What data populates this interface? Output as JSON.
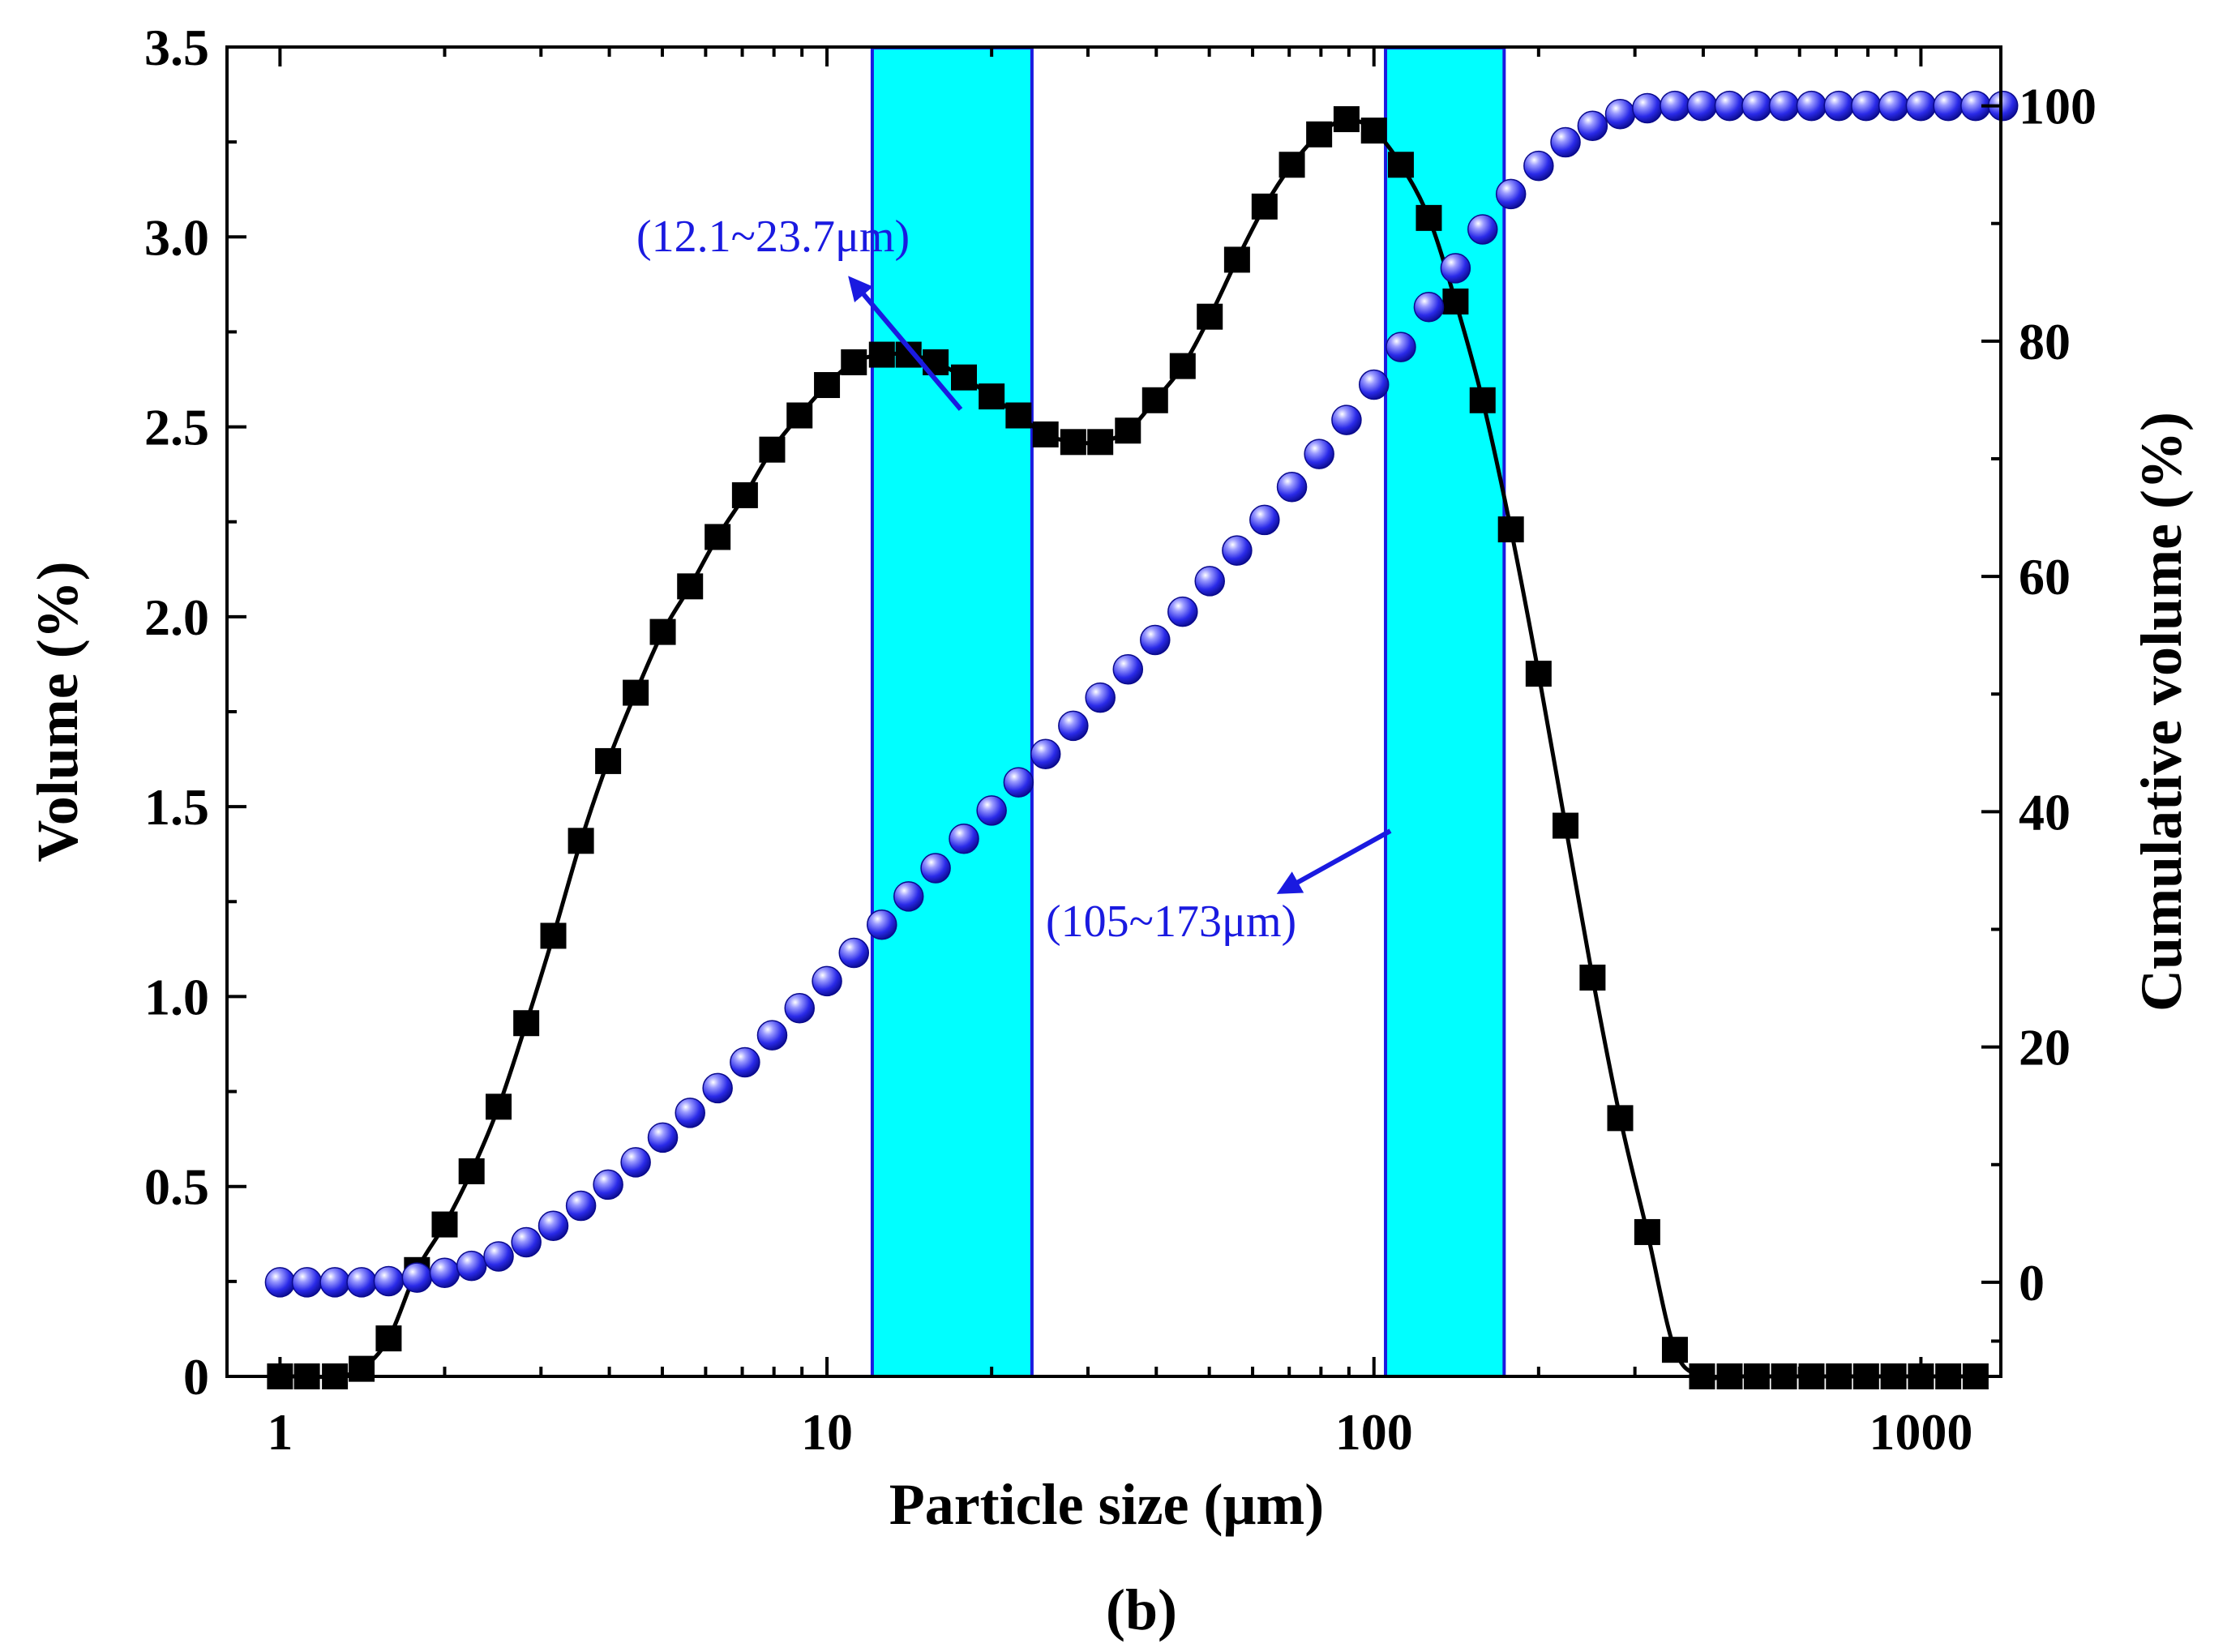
{
  "chart_data": {
    "type": "line",
    "x_scale": "log",
    "xlabel": "Particle size  (μm)",
    "ylabel_left": "Volume (%)",
    "ylabel_right": "Cumulative volume (%)",
    "caption": "(b)",
    "xlim": [
      0.8,
      1400
    ],
    "ylim_left": [
      0,
      3.5
    ],
    "ylim_right": [
      -8,
      105
    ],
    "x_ticks": [
      1,
      10,
      100,
      1000
    ],
    "x_tick_labels": [
      "1",
      "10",
      "100",
      "1000"
    ],
    "y_left_ticks": [
      0,
      0.5,
      1.0,
      1.5,
      2.0,
      2.5,
      3.0,
      3.5
    ],
    "y_left_tick_labels": [
      "0",
      "0.5",
      "1.0",
      "1.5",
      "2.0",
      "2.5",
      "3.0",
      "3.5"
    ],
    "y_right_ticks": [
      0,
      20,
      40,
      60,
      80,
      100
    ],
    "y_right_tick_labels": [
      "0",
      "20",
      "40",
      "60",
      "80",
      "100"
    ],
    "highlight_bands": [
      {
        "from": 12.1,
        "to": 23.7,
        "label": "(12.1~23.7μm)",
        "color": "#00ffff"
      },
      {
        "from": 105,
        "to": 173,
        "label": "(105~173μm)",
        "color": "#00ffff"
      }
    ],
    "series": [
      {
        "name": "Volume (%)",
        "axis": "left",
        "marker": "square",
        "color": "#000000",
        "points": [
          [
            1.0,
            0.0
          ],
          [
            1.12,
            0.0
          ],
          [
            1.26,
            0.0
          ],
          [
            1.41,
            0.02
          ],
          [
            1.58,
            0.1
          ],
          [
            1.78,
            0.28
          ],
          [
            2.0,
            0.4
          ],
          [
            2.24,
            0.54
          ],
          [
            2.51,
            0.71
          ],
          [
            2.82,
            0.93
          ],
          [
            3.16,
            1.16
          ],
          [
            3.55,
            1.41
          ],
          [
            3.98,
            1.62
          ],
          [
            4.47,
            1.8
          ],
          [
            5.01,
            1.96
          ],
          [
            5.62,
            2.08
          ],
          [
            6.31,
            2.21
          ],
          [
            7.08,
            2.32
          ],
          [
            7.94,
            2.44
          ],
          [
            8.91,
            2.53
          ],
          [
            10.0,
            2.61
          ],
          [
            11.2,
            2.67
          ],
          [
            12.6,
            2.69
          ],
          [
            14.1,
            2.69
          ],
          [
            15.8,
            2.67
          ],
          [
            17.8,
            2.63
          ],
          [
            20.0,
            2.58
          ],
          [
            22.4,
            2.53
          ],
          [
            25.1,
            2.48
          ],
          [
            28.2,
            2.46
          ],
          [
            31.6,
            2.46
          ],
          [
            35.5,
            2.49
          ],
          [
            39.8,
            2.57
          ],
          [
            44.7,
            2.66
          ],
          [
            50.1,
            2.79
          ],
          [
            56.2,
            2.94
          ],
          [
            63.1,
            3.08
          ],
          [
            70.8,
            3.19
          ],
          [
            79.4,
            3.27
          ],
          [
            89.1,
            3.31
          ],
          [
            100.0,
            3.28
          ],
          [
            112.0,
            3.19
          ],
          [
            126.0,
            3.05
          ],
          [
            141.0,
            2.83
          ],
          [
            158.0,
            2.57
          ],
          [
            178.0,
            2.23
          ],
          [
            200.0,
            1.85
          ],
          [
            224.0,
            1.45
          ],
          [
            251.0,
            1.05
          ],
          [
            282.0,
            0.68
          ],
          [
            316.0,
            0.38
          ],
          [
            355.0,
            0.07
          ],
          [
            398.0,
            0.0
          ],
          [
            447.0,
            0.0
          ],
          [
            501.0,
            0.0
          ],
          [
            562.0,
            0.0
          ],
          [
            631.0,
            0.0
          ],
          [
            708.0,
            0.0
          ],
          [
            794.0,
            0.0
          ],
          [
            891.0,
            0.0
          ],
          [
            1000.0,
            0.0
          ],
          [
            1122.0,
            0.0
          ],
          [
            1259.0,
            0.0
          ]
        ]
      },
      {
        "name": "Cumulative volume (%)",
        "axis": "right",
        "marker": "sphere",
        "color": "#1a1ae0",
        "points": [
          [
            1.0,
            0.0
          ],
          [
            1.12,
            0.0
          ],
          [
            1.26,
            0.0
          ],
          [
            1.41,
            0.0
          ],
          [
            1.58,
            0.1
          ],
          [
            1.78,
            0.4
          ],
          [
            2.0,
            0.8
          ],
          [
            2.24,
            1.4
          ],
          [
            2.51,
            2.2
          ],
          [
            2.82,
            3.4
          ],
          [
            3.16,
            4.8
          ],
          [
            3.55,
            6.5
          ],
          [
            3.98,
            8.3
          ],
          [
            4.47,
            10.2
          ],
          [
            5.01,
            12.3
          ],
          [
            5.62,
            14.4
          ],
          [
            6.31,
            16.5
          ],
          [
            7.08,
            18.7
          ],
          [
            7.94,
            21.0
          ],
          [
            8.91,
            23.3
          ],
          [
            10.0,
            25.6
          ],
          [
            11.2,
            28.0
          ],
          [
            12.6,
            30.4
          ],
          [
            14.1,
            32.8
          ],
          [
            15.8,
            35.2
          ],
          [
            17.8,
            37.7
          ],
          [
            20.0,
            40.1
          ],
          [
            22.4,
            42.5
          ],
          [
            25.1,
            44.9
          ],
          [
            28.2,
            47.3
          ],
          [
            31.6,
            49.7
          ],
          [
            35.5,
            52.1
          ],
          [
            39.8,
            54.6
          ],
          [
            44.7,
            57.0
          ],
          [
            50.1,
            59.6
          ],
          [
            56.2,
            62.2
          ],
          [
            63.1,
            64.8
          ],
          [
            70.8,
            67.6
          ],
          [
            79.4,
            70.4
          ],
          [
            89.1,
            73.3
          ],
          [
            100.0,
            76.3
          ],
          [
            112.0,
            79.5
          ],
          [
            126.0,
            82.9
          ],
          [
            141.0,
            86.2
          ],
          [
            158.0,
            89.5
          ],
          [
            178.0,
            92.5
          ],
          [
            200.0,
            94.9
          ],
          [
            224.0,
            96.9
          ],
          [
            251.0,
            98.3
          ],
          [
            282.0,
            99.3
          ],
          [
            316.0,
            99.8
          ],
          [
            355.0,
            100.0
          ],
          [
            398.0,
            100.0
          ],
          [
            447.0,
            100.0
          ],
          [
            501.0,
            100.0
          ],
          [
            562.0,
            100.0
          ],
          [
            631.0,
            100.0
          ],
          [
            708.0,
            100.0
          ],
          [
            794.0,
            100.0
          ],
          [
            891.0,
            100.0
          ],
          [
            1000.0,
            100.0
          ],
          [
            1122.0,
            100.0
          ],
          [
            1259.0,
            100.0
          ],
          [
            1413.0,
            100.0
          ]
        ]
      }
    ]
  }
}
